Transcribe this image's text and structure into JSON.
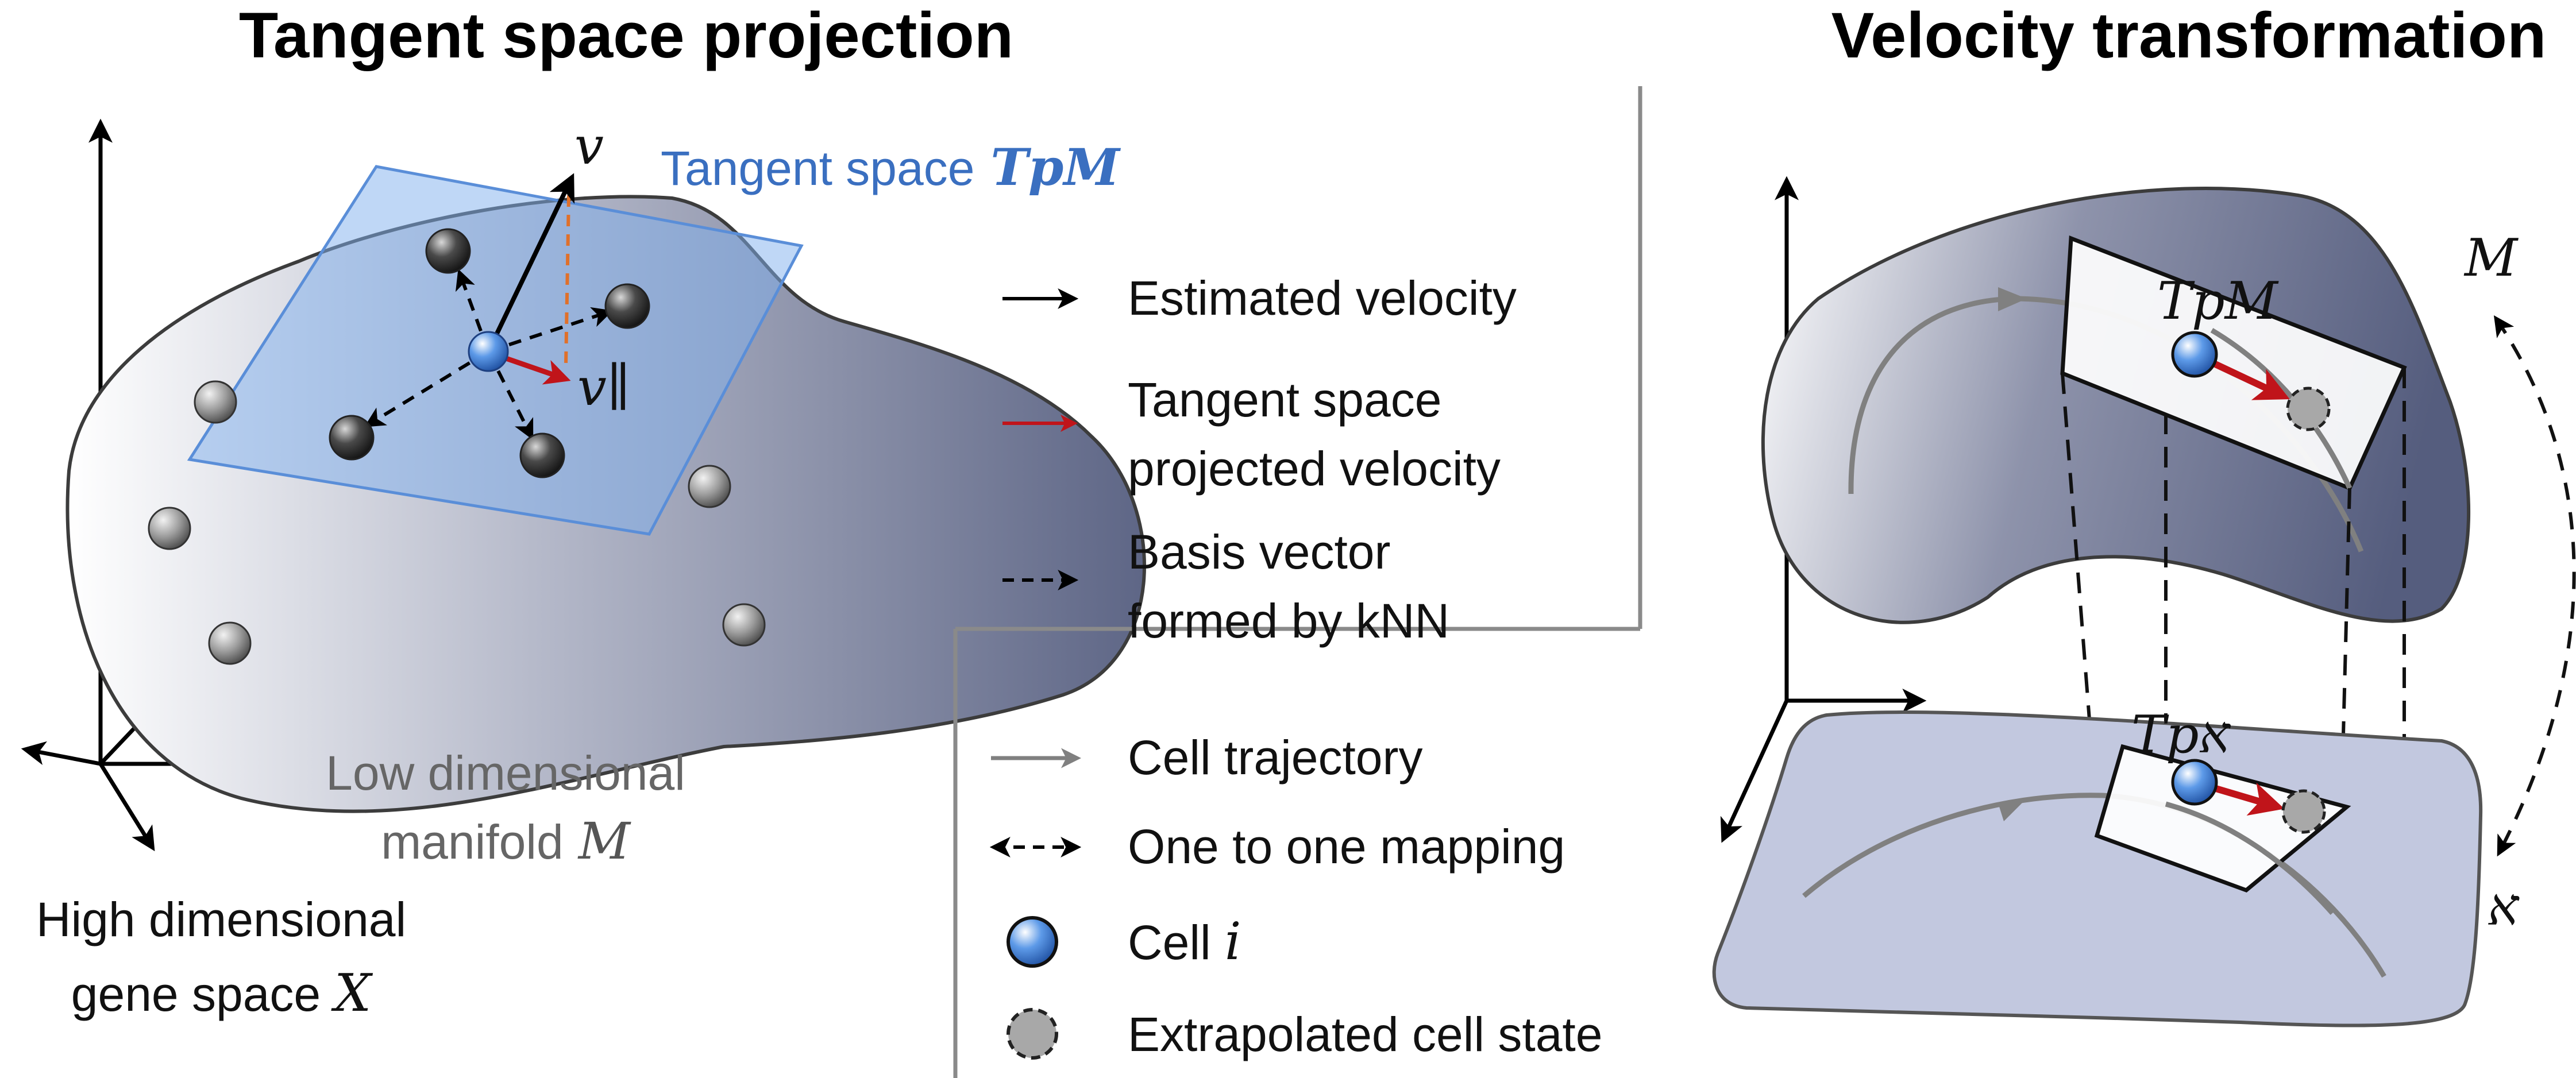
{
  "titles": {
    "left": "Tangent space projection",
    "right": "Velocity transformation"
  },
  "left_panel": {
    "tangent_space_label": "Tangent space",
    "tangent_space_symbol": "TpM",
    "v_label": "v",
    "v_parallel_label": "v∥",
    "manifold_label_line1": "Low dimensional",
    "manifold_label_line2": "manifold",
    "manifold_symbol": "M",
    "gene_space_line1": "High dimensional",
    "gene_space_line2": "gene space",
    "gene_space_symbol": "X"
  },
  "legend_top": {
    "items": [
      {
        "label_lines": [
          "Estimated velocity"
        ],
        "arrow": "solid-black"
      },
      {
        "label_lines": [
          "Tangent space",
          "projected velocity"
        ],
        "arrow": "solid-red"
      },
      {
        "label_lines": [
          "Basis vector",
          "formed by kNN"
        ],
        "arrow": "dashed-black"
      }
    ]
  },
  "legend_bottom": {
    "items": [
      {
        "label": "Cell trajectory",
        "symbol": "gray-arrow"
      },
      {
        "label": "One to one mapping",
        "symbol": "dashed-double-arrow"
      },
      {
        "label": "Cell",
        "label_italic": "i",
        "symbol": "blue-cell-icon"
      },
      {
        "label": "Extrapolated cell state",
        "symbol": "gray-dashed-circle-icon"
      }
    ]
  },
  "right_panel": {
    "upper_plane_symbol": "TpM",
    "lower_plane_symbol": "Tpא",
    "manifold_symbol": "M",
    "embedding_symbol": "א"
  },
  "colors": {
    "tangent_plane": "#7fb0ee",
    "manifold_dark": "#5c6585",
    "embedding_plane": "#c2c8df",
    "projected_velocity": "#c0141a",
    "orthogonal_dashed": "#e0702a",
    "cell_blue": "#4f8fe0"
  }
}
